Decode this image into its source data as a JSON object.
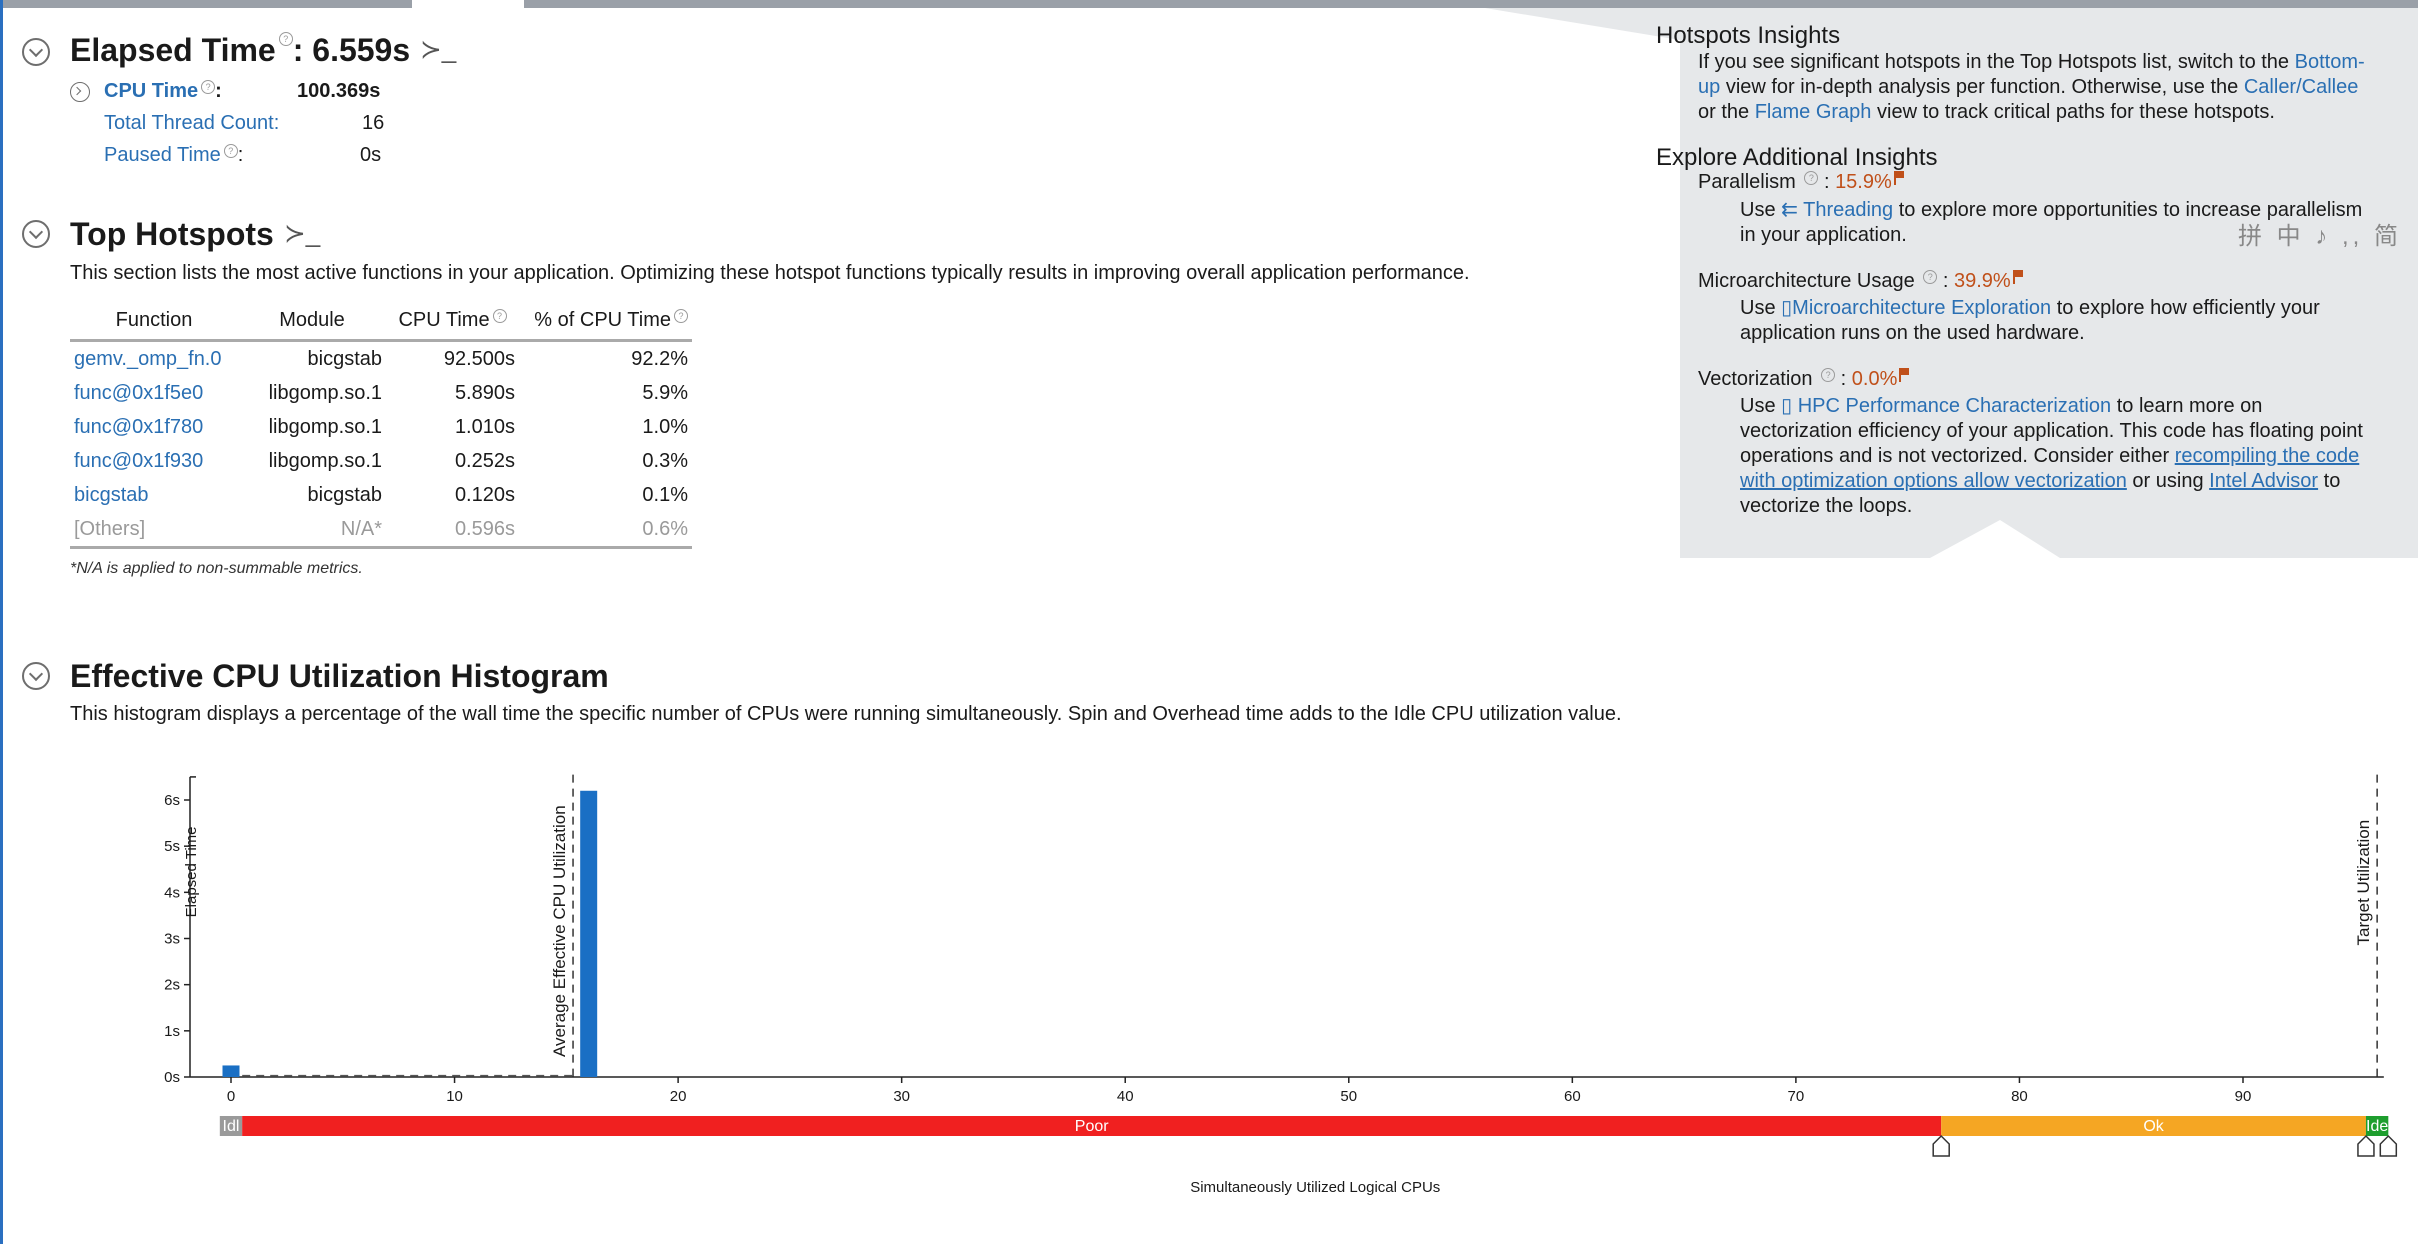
{
  "elapsed": {
    "title": "Elapsed Time",
    "value": ": 6.559s",
    "metrics": [
      {
        "label": "CPU Time",
        "value": "100.369s"
      },
      {
        "label": "Total Thread Count:",
        "value": "16"
      },
      {
        "label": "Paused Time",
        "value": "0s"
      }
    ],
    "cpu_time_colon": ":",
    "paused_colon": ":"
  },
  "hotspots": {
    "title": "Top Hotspots",
    "description": "This section lists the most active functions in your application. Optimizing these hotspot functions typically results in improving overall application performance.",
    "columns": [
      "Function",
      "Module",
      "CPU Time",
      "% of CPU Time"
    ],
    "rows": [
      {
        "function": "gemv._omp_fn.0",
        "module": "bicgstab",
        "cpu_time": "92.500s",
        "pct": "92.2%"
      },
      {
        "function": "func@0x1f5e0",
        "module": "libgomp.so.1",
        "cpu_time": "5.890s",
        "pct": "5.9%"
      },
      {
        "function": "func@0x1f780",
        "module": "libgomp.so.1",
        "cpu_time": "1.010s",
        "pct": "1.0%"
      },
      {
        "function": "func@0x1f930",
        "module": "libgomp.so.1",
        "cpu_time": "0.252s",
        "pct": "0.3%"
      },
      {
        "function": "bicgstab",
        "module": "bicgstab",
        "cpu_time": "0.120s",
        "pct": "0.1%"
      },
      {
        "function": "[Others]",
        "module": "N/A*",
        "cpu_time": "0.596s",
        "pct": "0.6%"
      }
    ],
    "footnote": "*N/A is applied to non-summable metrics."
  },
  "insights": {
    "hotspots_title": "Hotspots Insights",
    "hotspots_line1_a": "If you see significant hotspots in the Top Hotspots list, switch to the",
    "hotspots_link1": "Bottom-",
    "hotspots_link1b": "up",
    "hotspots_line2_a": "view for in-depth analysis per function. Otherwise, use the",
    "hotspots_link2": "Caller/Callee",
    "hotspots_line3_a": "or the",
    "hotspots_link3": "Flame Graph",
    "hotspots_line3_b": "view to track critical paths for these hotspots.",
    "explore_title": "Explore Additional Insights",
    "parallelism": {
      "label": "Parallelism",
      "value": "15.9%",
      "use": "Use",
      "link": "Threading",
      "text1": "to explore more opportunities to increase parallelism",
      "text2": "in your application."
    },
    "microarch": {
      "label": "Microarchitecture Usage",
      "value": "39.9%",
      "use": "Use",
      "link": "Microarchitecture Exploration",
      "text1": "to explore how efficiently your",
      "text2": "application runs on the used hardware."
    },
    "vectorization": {
      "label": "Vectorization",
      "value": "0.0%",
      "use": "Use",
      "link": "HPC Performance Characterization",
      "text1": "to learn more on",
      "text2": "vectorization efficiency of your application. This code has floating point",
      "text3": "operations and is not vectorized. Consider either",
      "link2": "recompiling the code",
      "link2b": "with optimization options allow vectorization",
      "text4": "or using",
      "link3": "Intel Advisor",
      "text5": "to",
      "text6": "vectorize the loops."
    },
    "colon": ":"
  },
  "ime_toolbar": "拼 中 ♪ ,, 简",
  "histogram": {
    "title": "Effective CPU Utilization Histogram",
    "description": "This histogram displays a percentage of the wall time the specific number of CPUs were running simultaneously. Spin and Overhead time adds to the Idle CPU utilization value."
  },
  "chart_data": {
    "type": "bar",
    "title": "",
    "xlabel": "Simultaneously Utilized Logical CPUs",
    "ylabel": "Elapsed Time",
    "xlim": [
      -1,
      96
    ],
    "ylim": [
      0,
      6.5
    ],
    "x_ticks": [
      0,
      10,
      20,
      30,
      40,
      50,
      60,
      70,
      80,
      90
    ],
    "y_ticks": [
      "0s",
      "1s",
      "2s",
      "3s",
      "4s",
      "5s",
      "6s"
    ],
    "y_tick_values": [
      0,
      1,
      2,
      3,
      4,
      5,
      6
    ],
    "bars": [
      {
        "x": 0,
        "value": 0.25
      },
      {
        "x": 16,
        "value": 6.2
      }
    ],
    "average_effective_utilization": {
      "x": 15.3,
      "label": "Average Effective CPU Utilization"
    },
    "target_utilization": {
      "x": 96,
      "label": "Target Utilization"
    },
    "utilization_bands": [
      {
        "label": "Idl",
        "from": -0.5,
        "to": 0.5,
        "color": "#9a9a9a"
      },
      {
        "label": "Poor",
        "from": 0.5,
        "to": 76.5,
        "color": "#f02020"
      },
      {
        "label": "Ok",
        "from": 76.5,
        "to": 95.5,
        "color": "#f5a623"
      },
      {
        "label": "Ide",
        "from": 95.5,
        "to": 96.5,
        "color": "#1e9e2e"
      }
    ],
    "band_handles": [
      76.5,
      95.5,
      96.5
    ]
  }
}
